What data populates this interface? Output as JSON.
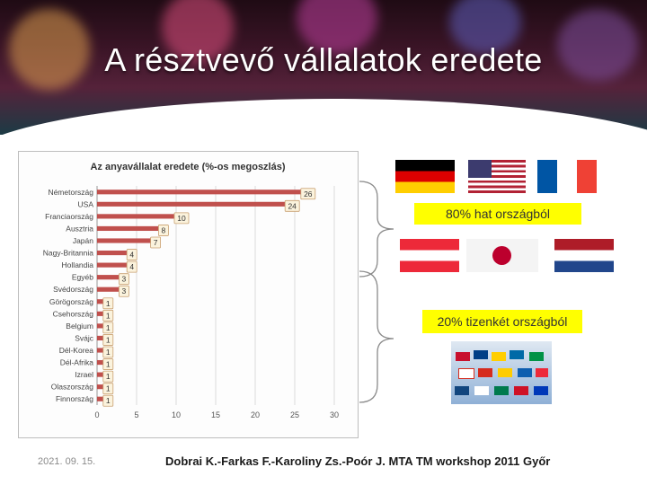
{
  "slide": {
    "title": "A résztvevő vállalatok eredete",
    "date": "2021. 09. 15.",
    "footer": "Dobrai K.-Farkas F.-Karoliny Zs.-Poór J.   MTA TM workshop 2011 Győr"
  },
  "labels": {
    "six_countries": "80% hat országból",
    "twelve_countries": "20% tizenkét országból"
  },
  "flags": [
    "germany-flag",
    "usa-flag",
    "france-flag",
    "austria-flag",
    "japan-flag",
    "netherlands-flag"
  ],
  "colors": {
    "bar": "#c0504d",
    "highlight": "#ffff00",
    "title_text": "#ffffff"
  },
  "chart_data": {
    "type": "bar",
    "orientation": "horizontal",
    "title": "Az anyavállalat eredete (%-os megoszlás)",
    "categories": [
      "Németország",
      "USA",
      "Franciaország",
      "Ausztria",
      "Japán",
      "Nagy-Britannia",
      "Hollandia",
      "Egyéb",
      "Svédország",
      "Görögország",
      "Csehország",
      "Belgium",
      "Svájc",
      "Dél-Korea",
      "Dél-Afrika",
      "Izrael",
      "Olaszország",
      "Finnország"
    ],
    "values": [
      26,
      24,
      10,
      8,
      7,
      4,
      4,
      3,
      3,
      1,
      1,
      1,
      1,
      1,
      1,
      1,
      1,
      1
    ],
    "xlim": [
      0,
      30
    ],
    "xticks": [
      0,
      5,
      10,
      15,
      20,
      25,
      30
    ],
    "grid": true
  }
}
